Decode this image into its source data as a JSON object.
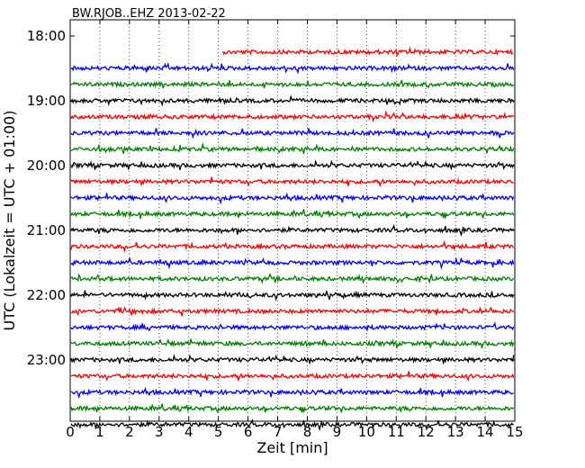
{
  "chart_data": {
    "type": "line",
    "title": "BW.RJOB..EHZ 2013-02-22",
    "xlabel": "Zeit  [min]",
    "ylabel": "UTC (Lokalzeit = UTC + 01:00)",
    "xlim": [
      0,
      15
    ],
    "x_ticks": [
      "0",
      "1",
      "2",
      "3",
      "4",
      "5",
      "6",
      "7",
      "8",
      "9",
      "10",
      "11",
      "12",
      "13",
      "14",
      "15"
    ],
    "y_ticks": [
      "18:00",
      "19:00",
      "20:00",
      "21:00",
      "22:00",
      "23:00"
    ],
    "grid": "vertical dotted",
    "trace_interval_min": 15,
    "start_time": "18:00",
    "first_trace_offset_min": 5.15,
    "colors": [
      "#ff0000",
      "#0000ff",
      "#008000",
      "#000000"
    ],
    "traces": [
      "18:00",
      "18:15",
      "18:30",
      "18:45",
      "19:00",
      "19:15",
      "19:30",
      "19:45",
      "20:00",
      "20:15",
      "20:30",
      "20:45",
      "21:00",
      "21:15",
      "21:30",
      "21:45",
      "22:00",
      "22:15",
      "22:30",
      "22:45",
      "23:00",
      "23:15",
      "23:30",
      "23:45"
    ]
  }
}
